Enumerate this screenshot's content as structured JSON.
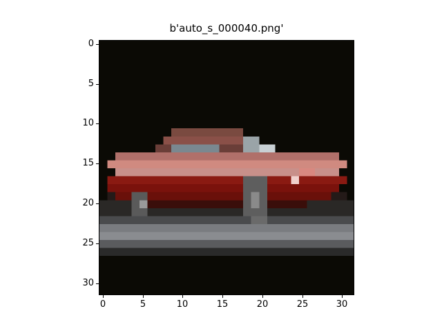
{
  "title": "b'auto_s_000040.png'",
  "axes": {
    "y_ticks": [
      "0",
      "5",
      "10",
      "15",
      "20",
      "25",
      "30"
    ],
    "x_ticks": [
      "0",
      "5",
      "10",
      "15",
      "20",
      "25",
      "30"
    ]
  },
  "image": {
    "subject": "red car, side view, on gray road against black background",
    "colors": {
      "background": "#0b0a05",
      "road_light": "#7a7c80",
      "road_dark": "#3e3f40",
      "body_red": "#7a120c",
      "body_highlight": "#d89a90",
      "roof": "#8a4a44",
      "window": "#6e7a80",
      "wheel": "#5a5a5a"
    }
  }
}
